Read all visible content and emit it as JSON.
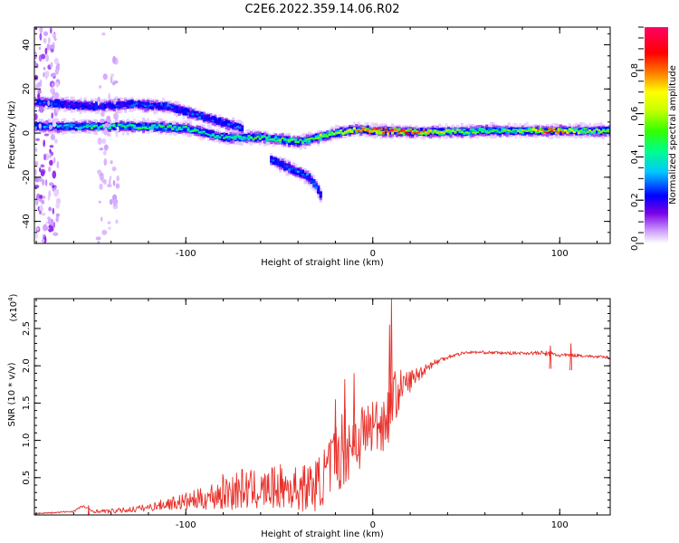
{
  "figure_title": "C2E6.2022.359.14.06.R02",
  "chart_data": [
    {
      "type": "heatmap",
      "title": "",
      "xlabel": "Height of straight line (km)",
      "ylabel": "Frequency (Hz)",
      "xlim": [
        -181,
        127
      ],
      "ylim": [
        -50,
        48
      ],
      "xticks": [
        -100,
        0,
        100
      ],
      "xtick_labels": [
        "-100",
        "0",
        "100"
      ],
      "yticks": [
        -40,
        -20,
        0,
        20,
        40
      ],
      "ytick_labels": [
        "-40",
        "-20",
        "0",
        "20",
        "40"
      ],
      "colorscale": [
        "#ffffff",
        "#cc99ff",
        "#7b00e6",
        "#0000ff",
        "#00c8ff",
        "#00ff66",
        "#66ff00",
        "#ffff00",
        "#ff8800",
        "#ff0000",
        "#ff0066"
      ],
      "colorbar": {
        "label": "Normalized spectral amplitude",
        "range": [
          0,
          1
        ],
        "ticks": [
          0.0,
          0.2,
          0.4,
          0.6,
          0.8
        ],
        "tick_labels": [
          "0.0",
          "0.2",
          "0.4",
          "0.6",
          "0.8"
        ]
      },
      "features": [
        {
          "name": "carrier",
          "points": [
            [
              -181,
              3,
              0.35
            ],
            [
              -150,
              3,
              0.45
            ],
            [
              -120,
              3,
              0.5
            ],
            [
              -100,
              2,
              0.45
            ],
            [
              -80,
              -2,
              0.45
            ],
            [
              -60,
              -2,
              0.5
            ],
            [
              -40,
              -4,
              0.5
            ],
            [
              -20,
              0,
              0.6
            ],
            [
              -10,
              1.5,
              0.7
            ],
            [
              0,
              1,
              0.85
            ],
            [
              20,
              0.5,
              0.8
            ],
            [
              40,
              0.5,
              0.6
            ],
            [
              60,
              1,
              0.5
            ],
            [
              80,
              1,
              0.55
            ],
            [
              95,
              1,
              0.85
            ],
            [
              110,
              1,
              0.55
            ],
            [
              127,
              1,
              0.55
            ]
          ]
        },
        {
          "name": "upper-branch",
          "points": [
            [
              -181,
              14,
              0.3
            ],
            [
              -150,
              12,
              0.25
            ],
            [
              -130,
              13,
              0.3
            ],
            [
              -110,
              12,
              0.3
            ],
            [
              -90,
              7,
              0.3
            ],
            [
              -70,
              2,
              0.3
            ]
          ]
        },
        {
          "name": "lower-branch",
          "points": [
            [
              -55,
              -12,
              0.3
            ],
            [
              -45,
              -16,
              0.3
            ],
            [
              -35,
              -20,
              0.35
            ],
            [
              -31,
              -24,
              0.35
            ],
            [
              -28,
              -29,
              0.15
            ]
          ]
        }
      ]
    },
    {
      "type": "line",
      "title": "",
      "xlabel": "Height of straight line (km)",
      "ylabel": "SNR (10 * v/v)",
      "y_scale_note": "(x10",
      "y_scale_exp": "4",
      "y_scale_close": ")",
      "xlim": [
        -181,
        127
      ],
      "ylim": [
        0,
        2.9
      ],
      "xticks": [
        -100,
        0,
        100
      ],
      "xtick_labels": [
        "-100",
        "0",
        "100"
      ],
      "yticks": [
        0.5,
        1.0,
        1.5,
        2.0,
        2.5
      ],
      "ytick_labels": [
        "0.5",
        "1.0",
        "1.5",
        "2.0",
        "2.5"
      ],
      "series": [
        {
          "color": "#e8302a",
          "x": [
            -181,
            -170,
            -160,
            -155,
            -150,
            -140,
            -130,
            -120,
            -110,
            -100,
            -90,
            -80,
            -70,
            -60,
            -50,
            -40,
            -30,
            -25,
            -20,
            -15,
            -10,
            -5,
            0,
            5,
            8,
            10,
            12,
            15,
            20,
            25,
            30,
            40,
            50,
            60,
            70,
            80,
            90,
            95,
            100,
            110,
            120,
            127
          ],
          "values": [
            0.02,
            0.03,
            0.05,
            0.12,
            0.05,
            0.05,
            0.07,
            0.1,
            0.15,
            0.18,
            0.22,
            0.3,
            0.35,
            0.32,
            0.38,
            0.35,
            0.4,
            0.55,
            0.75,
            0.95,
            1.0,
            1.1,
            1.2,
            1.25,
            1.3,
            1.55,
            1.6,
            1.7,
            1.8,
            1.9,
            2.0,
            2.12,
            2.18,
            2.18,
            2.17,
            2.17,
            2.17,
            2.16,
            2.14,
            2.14,
            2.12,
            2.11
          ],
          "noise": [
            0.01,
            0.01,
            0.015,
            0.02,
            0.02,
            0.03,
            0.04,
            0.05,
            0.08,
            0.12,
            0.15,
            0.25,
            0.28,
            0.25,
            0.3,
            0.3,
            0.35,
            0.4,
            0.5,
            0.55,
            0.5,
            0.45,
            0.4,
            0.4,
            0.4,
            0.35,
            0.35,
            0.25,
            0.15,
            0.1,
            0.06,
            0.03,
            0.02,
            0.02,
            0.02,
            0.02,
            0.03,
            0.04,
            0.03,
            0.02,
            0.02,
            0.02
          ]
        }
      ]
    }
  ]
}
